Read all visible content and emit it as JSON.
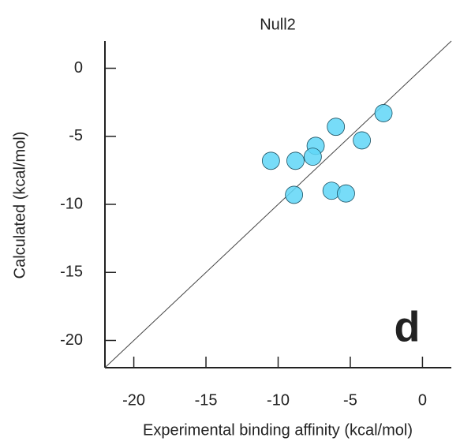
{
  "chart_data": {
    "type": "scatter",
    "title": "Null2",
    "x_label": "Experimental binding affinity (kcal/mol)",
    "y_label": "Calculated (kcal/mol)",
    "annotation": "d",
    "identity_line": true,
    "color": "#5fd6f7",
    "x": [
      -10.5,
      -8.8,
      -8.9,
      -7.4,
      -7.6,
      -6.0,
      -6.3,
      -5.3,
      -4.2,
      -2.7
    ],
    "y": [
      -6.8,
      -6.8,
      -9.3,
      -5.7,
      -6.5,
      -4.3,
      -9.0,
      -9.2,
      -5.3,
      -3.3
    ],
    "xlim": [
      -22,
      2
    ],
    "ylim": [
      -22,
      2
    ],
    "xticks": [
      -20,
      -15,
      -10,
      -5,
      0
    ],
    "yticks": [
      -20,
      -15,
      -10,
      -5,
      0
    ]
  }
}
